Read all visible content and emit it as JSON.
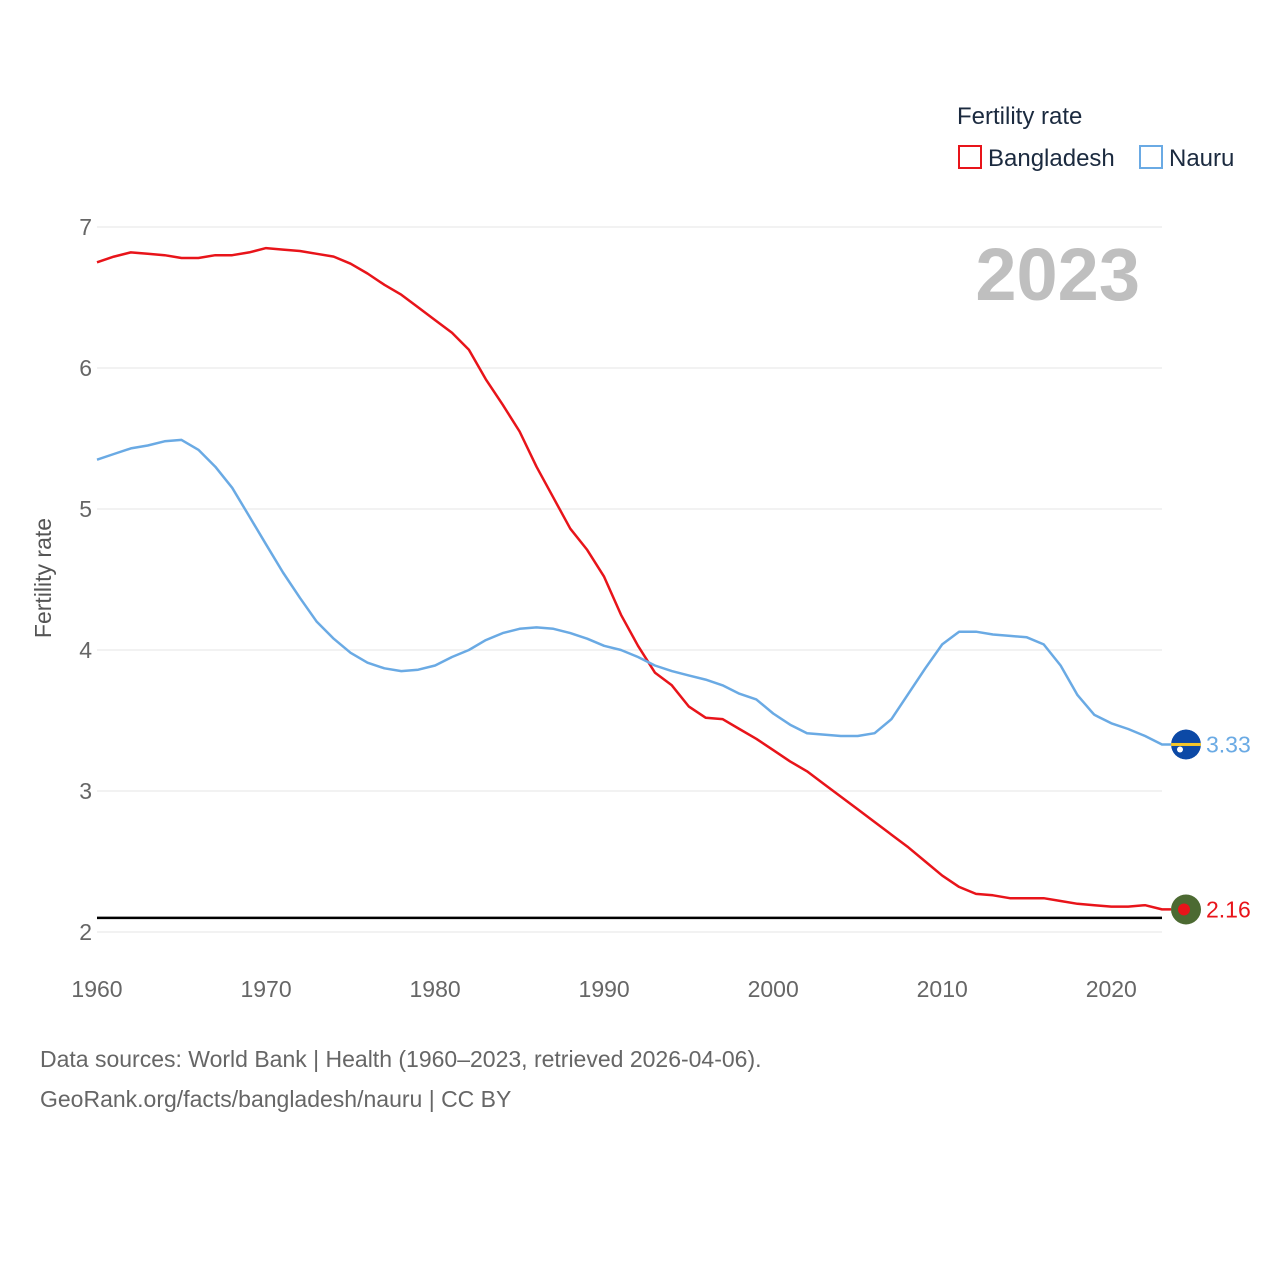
{
  "chart_data": {
    "type": "line",
    "ylabel": "Fertility rate",
    "xlabel": "",
    "year_label": "2023",
    "xlim": [
      1960,
      2023
    ],
    "ylim": [
      2,
      7
    ],
    "x_ticks": [
      1960,
      1970,
      1980,
      1990,
      2000,
      2010,
      2020
    ],
    "y_ticks": [
      2,
      3,
      4,
      5,
      6,
      7
    ],
    "reference_line": 2.1,
    "legend": {
      "title": "Fertility rate",
      "placement": "top-right"
    },
    "series": [
      {
        "name": "Bangladesh",
        "color": "#e8141a",
        "end_label": "2.16",
        "flag": "bangladesh-flag-icon",
        "points": [
          [
            1960,
            6.75
          ],
          [
            1961,
            6.79
          ],
          [
            1962,
            6.82
          ],
          [
            1963,
            6.81
          ],
          [
            1964,
            6.8
          ],
          [
            1965,
            6.78
          ],
          [
            1966,
            6.78
          ],
          [
            1967,
            6.8
          ],
          [
            1968,
            6.8
          ],
          [
            1969,
            6.82
          ],
          [
            1970,
            6.85
          ],
          [
            1971,
            6.84
          ],
          [
            1972,
            6.83
          ],
          [
            1973,
            6.81
          ],
          [
            1974,
            6.79
          ],
          [
            1975,
            6.74
          ],
          [
            1976,
            6.67
          ],
          [
            1977,
            6.59
          ],
          [
            1978,
            6.52
          ],
          [
            1979,
            6.43
          ],
          [
            1980,
            6.34
          ],
          [
            1981,
            6.25
          ],
          [
            1982,
            6.13
          ],
          [
            1983,
            5.92
          ],
          [
            1984,
            5.74
          ],
          [
            1985,
            5.55
          ],
          [
            1986,
            5.3
          ],
          [
            1987,
            5.08
          ],
          [
            1988,
            4.86
          ],
          [
            1989,
            4.71
          ],
          [
            1990,
            4.52
          ],
          [
            1991,
            4.25
          ],
          [
            1992,
            4.03
          ],
          [
            1993,
            3.84
          ],
          [
            1994,
            3.75
          ],
          [
            1995,
            3.6
          ],
          [
            1996,
            3.52
          ],
          [
            1997,
            3.51
          ],
          [
            1998,
            3.44
          ],
          [
            1999,
            3.37
          ],
          [
            2000,
            3.29
          ],
          [
            2001,
            3.21
          ],
          [
            2002,
            3.14
          ],
          [
            2003,
            3.05
          ],
          [
            2004,
            2.96
          ],
          [
            2005,
            2.87
          ],
          [
            2006,
            2.78
          ],
          [
            2007,
            2.69
          ],
          [
            2008,
            2.6
          ],
          [
            2009,
            2.5
          ],
          [
            2010,
            2.4
          ],
          [
            2011,
            2.32
          ],
          [
            2012,
            2.27
          ],
          [
            2013,
            2.26
          ],
          [
            2014,
            2.24
          ],
          [
            2015,
            2.24
          ],
          [
            2016,
            2.24
          ],
          [
            2017,
            2.22
          ],
          [
            2018,
            2.2
          ],
          [
            2019,
            2.19
          ],
          [
            2020,
            2.18
          ],
          [
            2021,
            2.18
          ],
          [
            2022,
            2.19
          ],
          [
            2023,
            2.16
          ]
        ]
      },
      {
        "name": "Nauru",
        "color": "#6aaae4",
        "end_label": "3.33",
        "flag": "nauru-flag-icon",
        "points": [
          [
            1960,
            5.35
          ],
          [
            1961,
            5.39
          ],
          [
            1962,
            5.43
          ],
          [
            1963,
            5.45
          ],
          [
            1964,
            5.48
          ],
          [
            1965,
            5.49
          ],
          [
            1966,
            5.42
          ],
          [
            1967,
            5.3
          ],
          [
            1968,
            5.15
          ],
          [
            1969,
            4.95
          ],
          [
            1970,
            4.75
          ],
          [
            1971,
            4.55
          ],
          [
            1972,
            4.37
          ],
          [
            1973,
            4.2
          ],
          [
            1974,
            4.08
          ],
          [
            1975,
            3.98
          ],
          [
            1976,
            3.91
          ],
          [
            1977,
            3.87
          ],
          [
            1978,
            3.85
          ],
          [
            1979,
            3.86
          ],
          [
            1980,
            3.89
          ],
          [
            1981,
            3.95
          ],
          [
            1982,
            4.0
          ],
          [
            1983,
            4.07
          ],
          [
            1984,
            4.12
          ],
          [
            1985,
            4.15
          ],
          [
            1986,
            4.16
          ],
          [
            1987,
            4.15
          ],
          [
            1988,
            4.12
          ],
          [
            1989,
            4.08
          ],
          [
            1990,
            4.03
          ],
          [
            1991,
            4.0
          ],
          [
            1992,
            3.95
          ],
          [
            1993,
            3.89
          ],
          [
            1994,
            3.85
          ],
          [
            1995,
            3.82
          ],
          [
            1996,
            3.79
          ],
          [
            1997,
            3.75
          ],
          [
            1998,
            3.69
          ],
          [
            1999,
            3.65
          ],
          [
            2000,
            3.55
          ],
          [
            2001,
            3.47
          ],
          [
            2002,
            3.41
          ],
          [
            2003,
            3.4
          ],
          [
            2004,
            3.39
          ],
          [
            2005,
            3.39
          ],
          [
            2006,
            3.41
          ],
          [
            2007,
            3.51
          ],
          [
            2008,
            3.69
          ],
          [
            2009,
            3.87
          ],
          [
            2010,
            4.04
          ],
          [
            2011,
            4.13
          ],
          [
            2012,
            4.13
          ],
          [
            2013,
            4.11
          ],
          [
            2014,
            4.1
          ],
          [
            2015,
            4.09
          ],
          [
            2016,
            4.04
          ],
          [
            2017,
            3.89
          ],
          [
            2018,
            3.68
          ],
          [
            2019,
            3.54
          ],
          [
            2020,
            3.48
          ],
          [
            2021,
            3.44
          ],
          [
            2022,
            3.39
          ],
          [
            2023,
            3.33
          ]
        ]
      }
    ]
  },
  "footer": {
    "sources": "Data sources: World Bank | Health (1960–2023, retrieved 2026-04-06).",
    "credit": "GeoRank.org/facts/bangladesh/nauru | CC BY"
  },
  "colors": {
    "grid": "#e6e6e6",
    "reference": "#000000",
    "bangladesh_flag_green": "#4c6a32",
    "bangladesh_flag_red": "#e8141a",
    "nauru_flag_blue": "#0c49a6",
    "nauru_flag_yellow": "#f4c62a"
  }
}
